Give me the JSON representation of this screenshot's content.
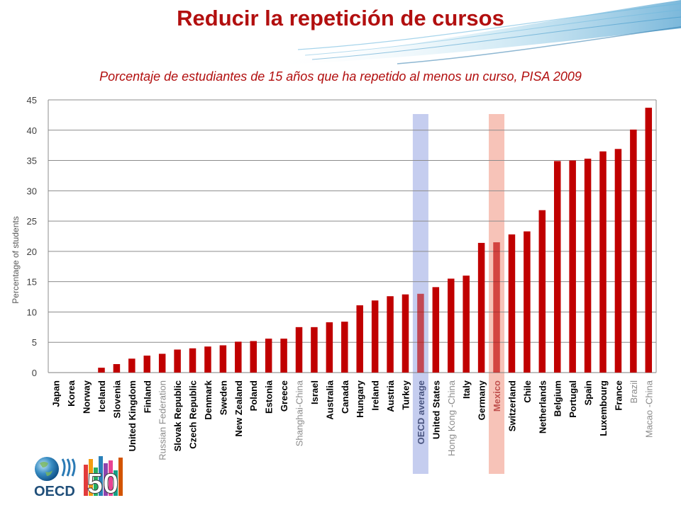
{
  "slide": {
    "title": "Reducir la repetición de cursos",
    "subtitle": "Porcentaje de estudiantes de 15 años que ha repetido al menos un curso, PISA 2009"
  },
  "logo": {
    "text": "OECD",
    "anniversary": "50"
  },
  "colors": {
    "bar": "#c00000",
    "title": "#b20f0f",
    "oecd_highlight": "#c5cdef",
    "mexico_highlight": "#f7c3b8",
    "grey_label": "#8c8c8c"
  },
  "chart_data": {
    "type": "bar",
    "ylabel": "Percentage of students",
    "ylim": [
      0,
      45
    ],
    "yticks": [
      0,
      5,
      10,
      15,
      20,
      25,
      30,
      35,
      40,
      45
    ],
    "grid": true,
    "categories": [
      "Japan",
      "Korea",
      "Norway",
      "Iceland",
      "Slovenia",
      "United Kingdom",
      "Finland",
      "Russian Federation",
      "Slovak Republic",
      "Czech Republic",
      "Denmark",
      "Sweden",
      "New Zealand",
      "Poland",
      "Estonia",
      "Greece",
      "Shanghai-China",
      "Israel",
      "Australia",
      "Canada",
      "Hungary",
      "Ireland",
      "Austria",
      "Turkey",
      "OECD average",
      "United States",
      "Hong Kong -China",
      "Italy",
      "Germany",
      "Mexico",
      "Switzerland",
      "Chile",
      "Netherlands",
      "Belgium",
      "Portugal",
      "Spain",
      "Luxembourg",
      "France",
      "Brazil",
      "Macao -China"
    ],
    "values": [
      0,
      0,
      0,
      0.8,
      1.4,
      2.3,
      2.8,
      3.1,
      3.8,
      4.0,
      4.3,
      4.5,
      5.1,
      5.2,
      5.6,
      5.6,
      7.5,
      7.5,
      8.3,
      8.4,
      11.1,
      11.9,
      12.6,
      12.9,
      13.0,
      14.1,
      15.5,
      16.0,
      21.4,
      21.5,
      22.8,
      23.3,
      26.8,
      34.9,
      35.0,
      35.3,
      36.5,
      36.9,
      40.1,
      43.7
    ],
    "highlighted": [
      "OECD average",
      "Mexico"
    ],
    "partner_economies": [
      "Russian Federation",
      "Shanghai-China",
      "Hong Kong -China",
      "Brazil",
      "Macao -China"
    ]
  }
}
